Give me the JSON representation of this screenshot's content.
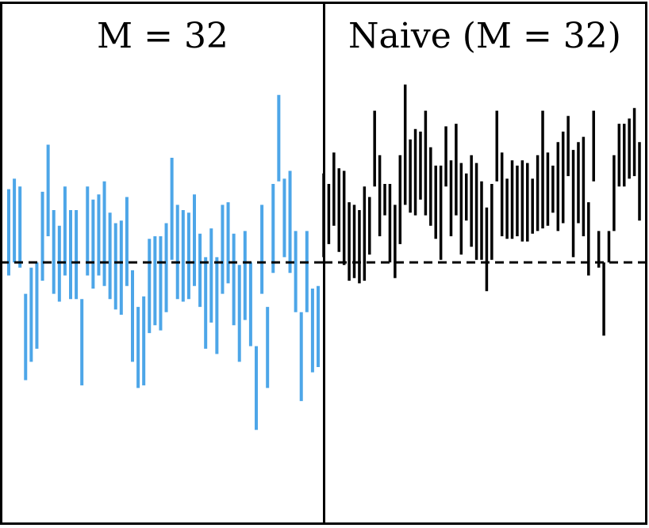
{
  "chart_data": [
    {
      "type": "errorbar",
      "title": "M = 32",
      "reference_line": 0,
      "grid": false,
      "legend": "none",
      "ylim": [
        -1.0,
        1.0
      ],
      "color": "#4da6e8",
      "intervals": [
        [
          -0.05,
          0.28
        ],
        [
          0.0,
          0.32
        ],
        [
          -0.02,
          0.29
        ],
        [
          -0.45,
          -0.12
        ],
        [
          -0.38,
          -0.02
        ],
        [
          -0.33,
          0.0
        ],
        [
          -0.07,
          0.27
        ],
        [
          0.1,
          0.45
        ],
        [
          -0.12,
          0.2
        ],
        [
          -0.15,
          0.14
        ],
        [
          -0.05,
          0.29
        ],
        [
          -0.14,
          0.2
        ],
        [
          -0.14,
          0.2
        ],
        [
          -0.47,
          -0.14
        ],
        [
          -0.05,
          0.29
        ],
        [
          -0.1,
          0.24
        ],
        [
          -0.05,
          0.26
        ],
        [
          -0.09,
          0.31
        ],
        [
          -0.14,
          0.19
        ],
        [
          -0.18,
          0.15
        ],
        [
          -0.2,
          0.16
        ],
        [
          -0.09,
          0.25
        ],
        [
          -0.38,
          -0.03
        ],
        [
          -0.48,
          -0.17
        ],
        [
          -0.47,
          -0.13
        ],
        [
          -0.27,
          0.09
        ],
        [
          -0.24,
          0.1
        ],
        [
          -0.26,
          0.1
        ],
        [
          -0.19,
          0.15
        ],
        [
          0.01,
          0.4
        ],
        [
          -0.14,
          0.22
        ],
        [
          -0.15,
          0.2
        ],
        [
          -0.14,
          0.19
        ],
        [
          -0.09,
          0.26
        ],
        [
          -0.17,
          0.11
        ],
        [
          -0.33,
          0.02
        ],
        [
          -0.23,
          0.13
        ],
        [
          -0.35,
          0.02
        ],
        [
          -0.12,
          0.22
        ],
        [
          -0.08,
          0.23
        ],
        [
          -0.24,
          0.11
        ],
        [
          -0.38,
          -0.01
        ],
        [
          -0.22,
          0.12
        ],
        [
          -0.32,
          0.0
        ],
        [
          -0.64,
          -0.32
        ],
        [
          -0.12,
          0.22
        ],
        [
          -0.48,
          -0.17
        ],
        [
          -0.04,
          0.3
        ],
        [
          0.31,
          0.64
        ],
        [
          0.02,
          0.32
        ],
        [
          -0.04,
          0.35
        ],
        [
          -0.19,
          0.12
        ],
        [
          -0.53,
          -0.19
        ],
        [
          -0.19,
          0.12
        ],
        [
          -0.42,
          -0.1
        ],
        [
          -0.4,
          -0.09
        ]
      ]
    },
    {
      "type": "errorbar",
      "title": "Naive (M = 32)",
      "reference_line": 0,
      "grid": false,
      "legend": "none",
      "ylim": [
        -1.0,
        1.0
      ],
      "color": "#000000",
      "intervals": [
        [
          0.02,
          0.34
        ],
        [
          0.07,
          0.3
        ],
        [
          0.14,
          0.42
        ],
        [
          0.04,
          0.36
        ],
        [
          -0.01,
          0.35
        ],
        [
          -0.07,
          0.23
        ],
        [
          -0.06,
          0.22
        ],
        [
          -0.08,
          0.2
        ],
        [
          -0.07,
          0.29
        ],
        [
          0.03,
          0.25
        ],
        [
          0.29,
          0.58
        ],
        [
          0.1,
          0.41
        ],
        [
          0.18,
          0.3
        ],
        [
          0.0,
          0.3
        ],
        [
          -0.06,
          0.22
        ],
        [
          0.07,
          0.41
        ],
        [
          0.22,
          0.68
        ],
        [
          0.19,
          0.47
        ],
        [
          0.18,
          0.51
        ],
        [
          0.24,
          0.5
        ],
        [
          0.18,
          0.58
        ],
        [
          0.14,
          0.44
        ],
        [
          0.09,
          0.37
        ],
        [
          0.01,
          0.37
        ],
        [
          0.29,
          0.52
        ],
        [
          0.1,
          0.39
        ],
        [
          0.18,
          0.53
        ],
        [
          0.03,
          0.38
        ],
        [
          0.16,
          0.34
        ],
        [
          0.06,
          0.41
        ],
        [
          0.01,
          0.38
        ],
        [
          0.01,
          0.31
        ],
        [
          -0.11,
          0.21
        ],
        [
          0.01,
          0.3
        ],
        [
          0.31,
          0.58
        ],
        [
          0.1,
          0.42
        ],
        [
          0.09,
          0.32
        ],
        [
          0.09,
          0.39
        ],
        [
          0.1,
          0.37
        ],
        [
          0.08,
          0.39
        ],
        [
          0.08,
          0.38
        ],
        [
          0.11,
          0.32
        ],
        [
          0.12,
          0.41
        ],
        [
          0.13,
          0.58
        ],
        [
          0.14,
          0.42
        ],
        [
          0.19,
          0.37
        ],
        [
          0.12,
          0.46
        ],
        [
          0.15,
          0.5
        ],
        [
          0.33,
          0.56
        ],
        [
          0.02,
          0.43
        ],
        [
          0.15,
          0.46
        ],
        [
          0.1,
          0.48
        ],
        [
          -0.05,
          0.23
        ],
        [
          0.31,
          0.58
        ],
        [
          -0.02,
          0.12
        ],
        [
          -0.28,
          0.0
        ],
        [
          0.0,
          0.12
        ],
        [
          0.12,
          0.41
        ],
        [
          0.29,
          0.53
        ],
        [
          0.29,
          0.53
        ],
        [
          0.32,
          0.55
        ],
        [
          0.33,
          0.59
        ],
        [
          0.16,
          0.46
        ]
      ]
    }
  ]
}
